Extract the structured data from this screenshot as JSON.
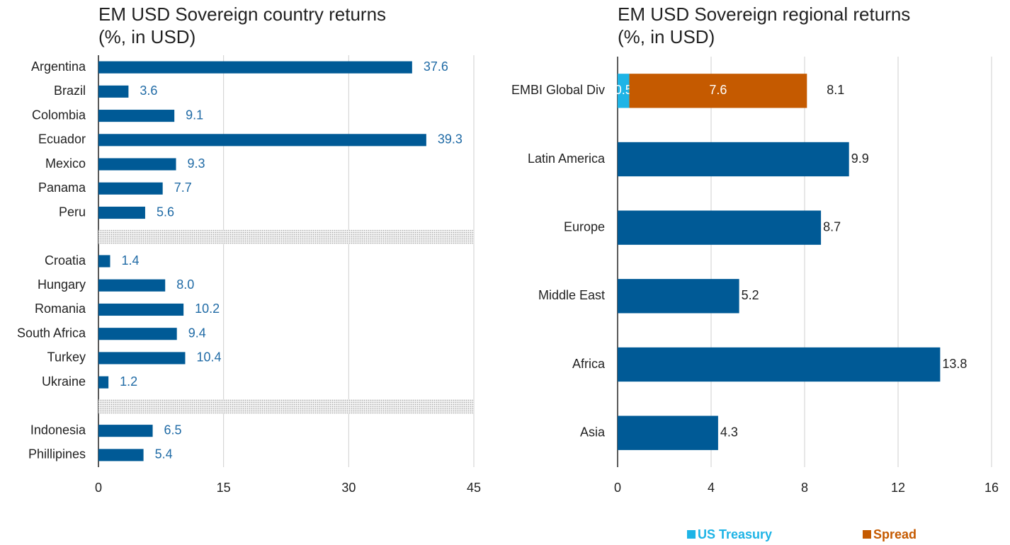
{
  "chart_data": [
    {
      "type": "bar",
      "orientation": "horizontal",
      "title": "EM USD Sovereign country returns",
      "subtitle": "(%, in USD)",
      "categories": [
        "Argentina",
        "Brazil",
        "Colombia",
        "Ecuador",
        "Mexico",
        "Panama",
        "Peru",
        null,
        "Croatia",
        "Hungary",
        "Romania",
        "South Africa",
        "Turkey",
        "Ukraine",
        null,
        "Indonesia",
        "Phillipines"
      ],
      "values": [
        37.6,
        3.6,
        9.1,
        39.3,
        9.3,
        7.7,
        5.6,
        null,
        1.4,
        8.0,
        10.2,
        9.4,
        10.4,
        1.2,
        null,
        6.5,
        5.4
      ],
      "value_labels": [
        "37.6",
        "3.6",
        "9.1",
        "39.3",
        "9.3",
        "7.7",
        "5.6",
        null,
        "1.4",
        "8.0",
        "10.2",
        "9.4",
        "10.4",
        "1.2",
        null,
        "6.5",
        "5.4"
      ],
      "color": "#005a96",
      "label_color": "#1f6aa5",
      "xlim": [
        0,
        45
      ],
      "xticks": [
        0,
        15,
        30,
        45
      ],
      "grid": true
    },
    {
      "type": "stacked_bar",
      "orientation": "horizontal",
      "title": "EM USD Sovereign regional returns",
      "subtitle": "(%, in USD)",
      "categories": [
        "EMBI Global Div",
        "Latin America",
        "Europe",
        "Middle East",
        "Africa",
        "Asia"
      ],
      "values": [
        8.1,
        9.9,
        8.7,
        5.2,
        13.8,
        4.3
      ],
      "color": "#005a96",
      "series": [
        {
          "name": "US Treasury",
          "color": "#1eb4e6",
          "values": [
            0.5,
            null,
            null,
            null,
            null,
            null
          ]
        },
        {
          "name": "Spread",
          "color": "#c55a00",
          "values": [
            7.6,
            null,
            null,
            null,
            null,
            null
          ]
        }
      ],
      "xlim": [
        0,
        16
      ],
      "xticks": [
        0,
        4,
        8,
        12,
        16
      ],
      "grid": true,
      "legend": "bottom"
    }
  ]
}
